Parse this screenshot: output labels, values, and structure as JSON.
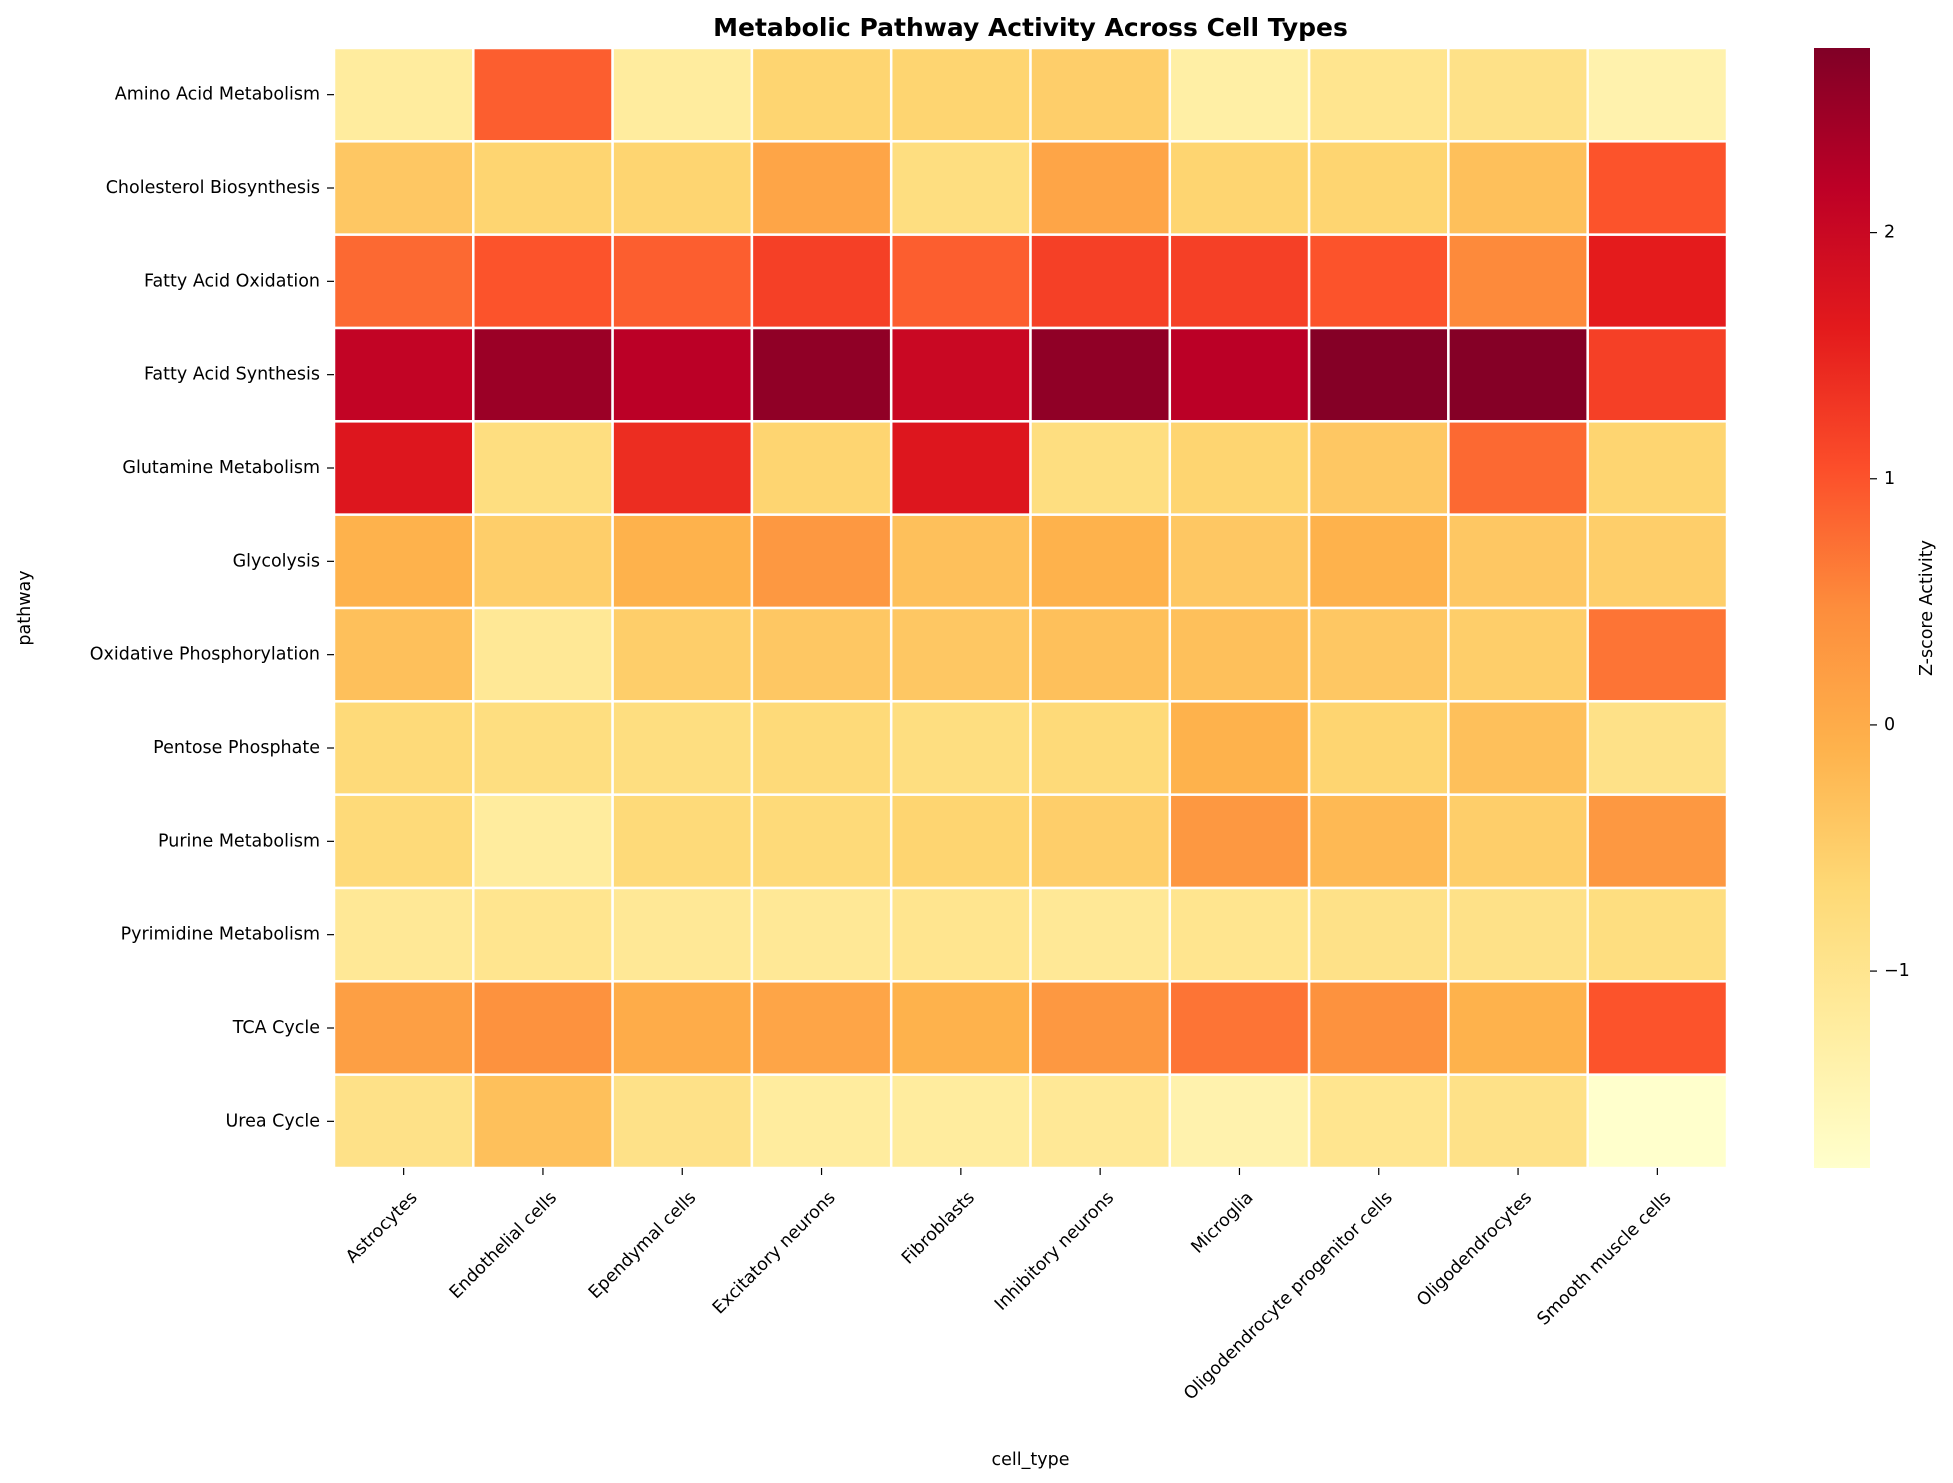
{
  "chart_data": {
    "type": "heatmap",
    "title": "Metabolic Pathway Activity Across Cell Types",
    "xlabel": "cell_type",
    "ylabel": "pathway",
    "colorbar_label": "Z-score Activity",
    "colormap": "YlOrRd",
    "value_range": [
      -1.8,
      2.75
    ],
    "colorbar_ticks": [
      -1,
      0,
      1,
      2
    ],
    "colorbar_tick_labels": [
      "−1",
      "0",
      "1",
      "2"
    ],
    "grid": false,
    "legend": "colorbar-right",
    "x_categories": [
      "Astrocytes",
      "Endothelial cells",
      "Ependymal cells",
      "Excitatory neurons",
      "Fibroblasts",
      "Inhibitory neurons",
      "Microglia",
      "Oligodendrocyte progenitor cells",
      "Oligodendrocytes",
      "Smooth muscle cells"
    ],
    "y_categories": [
      "Amino Acid Metabolism",
      "Cholesterol Biosynthesis",
      "Fatty Acid Oxidation",
      "Fatty Acid Synthesis",
      "Glutamine Metabolism",
      "Glycolysis",
      "Oxidative Phosphorylation",
      "Pentose Phosphate",
      "Purine Metabolism",
      "Pyrimidine Metabolism",
      "TCA Cycle",
      "Urea Cycle"
    ],
    "values": [
      [
        -1.2,
        0.9,
        -1.2,
        -0.6,
        -0.6,
        -0.5,
        -1.3,
        -1.0,
        -0.9,
        -1.4
      ],
      [
        -0.4,
        -0.6,
        -0.6,
        0.1,
        -0.8,
        0.1,
        -0.6,
        -0.6,
        -0.3,
        1.0
      ],
      [
        0.8,
        1.0,
        0.9,
        1.2,
        0.9,
        1.2,
        1.2,
        1.0,
        0.5,
        1.6
      ],
      [
        2.1,
        2.5,
        2.2,
        2.6,
        2.0,
        2.6,
        2.2,
        2.7,
        2.7,
        1.2
      ],
      [
        1.7,
        -0.8,
        1.4,
        -0.6,
        1.7,
        -0.8,
        -0.6,
        -0.4,
        0.8,
        -0.6
      ],
      [
        -0.1,
        -0.5,
        -0.1,
        0.3,
        -0.3,
        -0.1,
        -0.4,
        -0.1,
        -0.4,
        -0.5
      ],
      [
        -0.3,
        -1.1,
        -0.5,
        -0.4,
        -0.4,
        -0.3,
        -0.3,
        -0.4,
        -0.5,
        0.7
      ],
      [
        -0.7,
        -0.8,
        -0.8,
        -0.7,
        -0.8,
        -0.7,
        -0.1,
        -0.6,
        -0.3,
        -0.9
      ],
      [
        -0.7,
        -1.2,
        -0.7,
        -0.7,
        -0.6,
        -0.5,
        0.3,
        -0.2,
        -0.5,
        0.3
      ],
      [
        -1.1,
        -1.0,
        -1.1,
        -1.1,
        -1.0,
        -1.1,
        -1.0,
        -0.9,
        -0.9,
        -0.8
      ],
      [
        0.2,
        0.4,
        0.0,
        0.1,
        -0.1,
        0.3,
        0.7,
        0.4,
        -0.1,
        1.0
      ],
      [
        -0.9,
        -0.3,
        -0.9,
        -1.2,
        -1.2,
        -1.1,
        -1.4,
        -1.0,
        -0.9,
        -1.8
      ]
    ]
  }
}
